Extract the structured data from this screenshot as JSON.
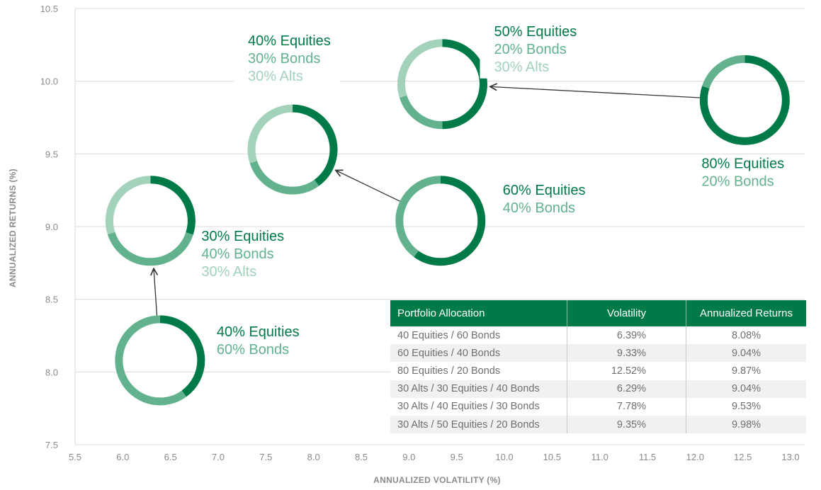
{
  "colors": {
    "equities": "#007a47",
    "bonds": "#62b28e",
    "alts": "#a3d2bb",
    "grid": "#d9d9d9",
    "axis_text": "#8a8a8a",
    "table_header": "#007a47"
  },
  "chart_data": {
    "type": "scatter",
    "xlabel": "ANNUALIZED VOLATILITY (%)",
    "ylabel": "ANNUALIZED RETURNS (%)",
    "xlim": [
      5.5,
      13.0
    ],
    "ylim": [
      7.5,
      10.5
    ],
    "xticks": [
      "5.5",
      "6.0",
      "6.5",
      "7.0",
      "7.5",
      "8.0",
      "8.5",
      "9.0",
      "9.5",
      "10.0",
      "10.5",
      "11.0",
      "11.5",
      "12.0",
      "12.5",
      "13.0"
    ],
    "yticks": [
      "10.5",
      "10.0",
      "9.5",
      "9.0",
      "8.5",
      "8.0",
      "7.5"
    ],
    "grid": "horizontal",
    "points": [
      {
        "id": "p1",
        "x": 6.39,
        "y": 8.08,
        "alloc": [
          {
            "part": "equities",
            "pct": 40
          },
          {
            "part": "bonds",
            "pct": 60
          }
        ],
        "label": [
          {
            "text": "40% Equities",
            "part": "equities"
          },
          {
            "text": "60% Bonds",
            "part": "bonds"
          }
        ]
      },
      {
        "id": "p2",
        "x": 6.29,
        "y": 9.04,
        "alloc": [
          {
            "part": "equities",
            "pct": 30
          },
          {
            "part": "bonds",
            "pct": 40
          },
          {
            "part": "alts",
            "pct": 30
          }
        ],
        "label": [
          {
            "text": "30% Equities",
            "part": "equities"
          },
          {
            "text": "40% Bonds",
            "part": "bonds"
          },
          {
            "text": "30% Alts",
            "part": "alts"
          }
        ]
      },
      {
        "id": "p3",
        "x": 9.33,
        "y": 9.04,
        "alloc": [
          {
            "part": "equities",
            "pct": 60
          },
          {
            "part": "bonds",
            "pct": 40
          }
        ],
        "label": [
          {
            "text": "60% Equities",
            "part": "equities"
          },
          {
            "text": "40% Bonds",
            "part": "bonds"
          }
        ]
      },
      {
        "id": "p4",
        "x": 7.78,
        "y": 9.53,
        "alloc": [
          {
            "part": "equities",
            "pct": 40
          },
          {
            "part": "bonds",
            "pct": 30
          },
          {
            "part": "alts",
            "pct": 30
          }
        ],
        "label": [
          {
            "text": "40% Equities",
            "part": "equities"
          },
          {
            "text": "30% Bonds",
            "part": "bonds"
          },
          {
            "text": "30% Alts",
            "part": "alts"
          }
        ]
      },
      {
        "id": "p5",
        "x": 12.52,
        "y": 9.87,
        "alloc": [
          {
            "part": "equities",
            "pct": 80
          },
          {
            "part": "bonds",
            "pct": 20
          }
        ],
        "label": [
          {
            "text": "80% Equities",
            "part": "equities"
          },
          {
            "text": "20% Bonds",
            "part": "bonds"
          }
        ]
      },
      {
        "id": "p6",
        "x": 9.35,
        "y": 9.98,
        "alloc": [
          {
            "part": "equities",
            "pct": 50
          },
          {
            "part": "bonds",
            "pct": 20
          },
          {
            "part": "alts",
            "pct": 30
          }
        ],
        "label": [
          {
            "text": "50% Equities",
            "part": "equities"
          },
          {
            "text": "20% Bonds",
            "part": "bonds"
          },
          {
            "text": "30% Alts",
            "part": "alts"
          }
        ]
      }
    ],
    "arrows": [
      {
        "from": "p1",
        "to": "p2"
      },
      {
        "from": "p3",
        "to": "p4"
      },
      {
        "from": "p5",
        "to": "p6"
      }
    ]
  },
  "table": {
    "headers": [
      "Portfolio Allocation",
      "Volatility",
      "Annualized Returns"
    ],
    "rows": [
      [
        "40 Equities / 60 Bonds",
        "6.39%",
        "8.08%"
      ],
      [
        "60 Equities / 40 Bonds",
        "9.33%",
        "9.04%"
      ],
      [
        "80 Equities / 20 Bonds",
        "12.52%",
        "9.87%"
      ],
      [
        "30 Alts / 30 Equities / 40 Bonds",
        "6.29%",
        "9.04%"
      ],
      [
        "30 Alts / 40 Equities / 30 Bonds",
        "7.78%",
        "9.53%"
      ],
      [
        "30 Alts / 50 Equities / 20 Bonds",
        "9.35%",
        "9.98%"
      ]
    ]
  }
}
